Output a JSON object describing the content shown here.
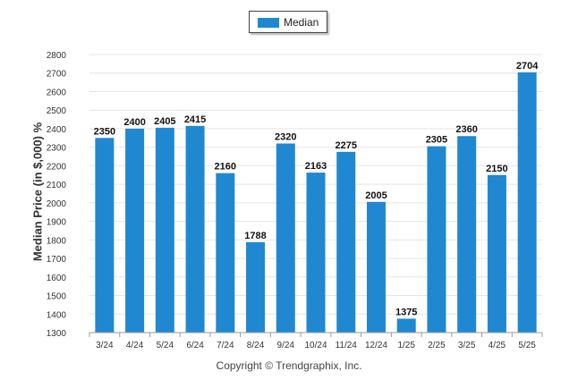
{
  "chart_data": {
    "type": "bar",
    "categories": [
      "3/24",
      "4/24",
      "5/24",
      "6/24",
      "7/24",
      "8/24",
      "9/24",
      "10/24",
      "11/24",
      "12/24",
      "1/25",
      "2/25",
      "3/25",
      "4/25",
      "5/25"
    ],
    "series": [
      {
        "name": "Median",
        "values": [
          2350,
          2400,
          2405,
          2415,
          2160,
          1788,
          2320,
          2163,
          2275,
          2005,
          1375,
          2305,
          2360,
          2150,
          2704
        ]
      }
    ],
    "ylabel": "Median Price (in $,000) %",
    "ylim": [
      1300,
      2800
    ],
    "yticks": [
      1300,
      1400,
      1500,
      1600,
      1700,
      1800,
      1900,
      2000,
      2100,
      2200,
      2300,
      2400,
      2500,
      2600,
      2700,
      2800
    ],
    "grid": true,
    "legend_position": "top-center",
    "bar_color": "#1f88d1"
  },
  "footer": {
    "copyright": "Copyright © Trendgraphix, Inc."
  }
}
